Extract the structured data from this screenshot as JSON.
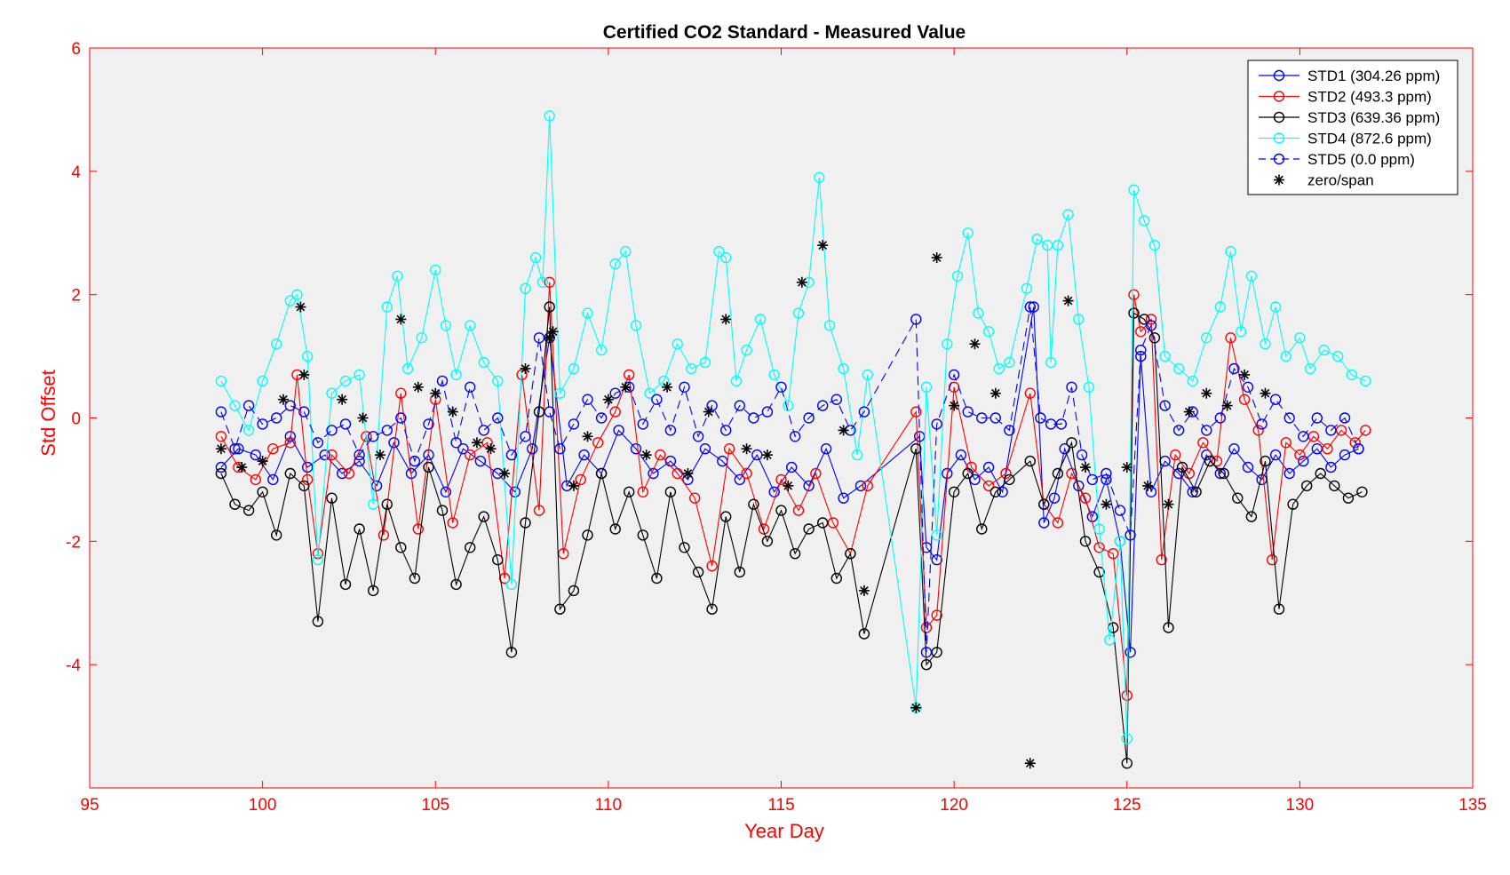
{
  "chart_data": {
    "type": "line",
    "title": "Certified CO2 Standard - Measured Value",
    "xlabel": "Year Day",
    "ylabel": "Std Offset",
    "xlim": [
      95,
      135
    ],
    "ylim": [
      -6,
      6
    ],
    "xticks": [
      95,
      100,
      105,
      110,
      115,
      120,
      125,
      130,
      135
    ],
    "yticks": [
      -4,
      -2,
      0,
      2,
      4,
      6
    ],
    "xtick_labels": [
      "95",
      "100",
      "105",
      "110",
      "115",
      "120",
      "125",
      "130",
      "135"
    ],
    "ytick_labels": [
      "-4",
      "-2",
      "0",
      "2",
      "4",
      "6"
    ],
    "axis_color": "#ff0000",
    "plot_background": "#f0f0f0",
    "legend_position": "top-right",
    "series": [
      {
        "name": "STD1 (304.26 ppm)",
        "color": "#0000ff",
        "marker": "circle",
        "line": "solid",
        "x": [
          98.8,
          99.3,
          99.8,
          100.3,
          100.8,
          101.3,
          101.8,
          102.3,
          102.8,
          103.3,
          103.8,
          104.3,
          104.8,
          105.3,
          105.8,
          106.3,
          106.8,
          107.3,
          107.8,
          108.3,
          108.8,
          109.3,
          109.8,
          110.3,
          110.8,
          111.3,
          111.8,
          112.3,
          112.8,
          113.3,
          113.8,
          114.3,
          114.8,
          115.3,
          115.8,
          116.3,
          116.8,
          117.3,
          119.0,
          119.2,
          119.5,
          119.8,
          120.2,
          120.6,
          121.0,
          121.4,
          122.3,
          122.6,
          122.9,
          123.2,
          123.6,
          124.0,
          124.4,
          124.8,
          125.1,
          125.4,
          125.7,
          126.1,
          126.5,
          126.9,
          127.3,
          127.7,
          128.1,
          128.5,
          128.9,
          129.3,
          129.7,
          130.1,
          130.5,
          130.9,
          131.3,
          131.7
        ],
        "y": [
          -0.8,
          -0.5,
          -0.6,
          -1.0,
          -0.3,
          -0.8,
          -0.6,
          -0.9,
          -0.7,
          -1.1,
          -0.4,
          -0.9,
          -0.6,
          -1.2,
          -0.5,
          -0.7,
          -0.9,
          -1.2,
          -0.5,
          1.3,
          -1.1,
          -0.6,
          -0.9,
          -0.2,
          -0.5,
          -0.9,
          -0.7,
          -1.0,
          -0.5,
          -0.7,
          -1.0,
          -0.6,
          -1.2,
          -0.8,
          -1.1,
          -0.5,
          -1.3,
          -1.1,
          -0.3,
          -2.1,
          -2.3,
          -0.9,
          -0.6,
          -1.0,
          -0.8,
          -1.2,
          1.8,
          -1.7,
          -1.3,
          -0.5,
          -1.1,
          -1.6,
          -1.0,
          -2.0,
          -3.8,
          1.0,
          -1.2,
          -0.7,
          -0.9,
          -1.2,
          -0.6,
          -0.9,
          -0.5,
          -0.8,
          -1.0,
          -0.6,
          -0.9,
          -0.7,
          -0.5,
          -0.8,
          -0.6,
          -0.5
        ]
      },
      {
        "name": "STD2 (493.3 ppm)",
        "color": "#ff0000",
        "marker": "circle",
        "line": "solid",
        "x": [
          98.8,
          99.3,
          99.8,
          100.3,
          100.8,
          101.0,
          101.3,
          101.6,
          102.0,
          102.5,
          103.0,
          103.5,
          104.0,
          104.5,
          105.0,
          105.5,
          106.0,
          106.5,
          107.0,
          107.5,
          108.0,
          108.3,
          108.7,
          109.2,
          109.7,
          110.2,
          110.6,
          111.0,
          111.5,
          112.0,
          112.5,
          113.0,
          113.5,
          114.0,
          114.5,
          115.0,
          115.5,
          116.0,
          116.5,
          117.0,
          117.5,
          118.9,
          119.2,
          119.5,
          120.0,
          120.5,
          121.0,
          121.5,
          122.2,
          122.6,
          123.0,
          123.4,
          123.8,
          124.2,
          124.6,
          125.0,
          125.2,
          125.4,
          125.7,
          126.0,
          126.4,
          126.8,
          127.2,
          127.6,
          128.0,
          128.4,
          128.8,
          129.2,
          129.6,
          130.0,
          130.4,
          130.8,
          131.2,
          131.6,
          131.9
        ],
        "y": [
          -0.3,
          -0.8,
          -1.0,
          -0.5,
          -0.4,
          0.7,
          -1.0,
          -2.2,
          -0.6,
          -0.9,
          -0.3,
          -1.9,
          0.4,
          -1.8,
          0.3,
          -1.7,
          -0.6,
          -0.4,
          -2.6,
          0.7,
          -1.5,
          2.2,
          -2.2,
          -1.0,
          -0.4,
          0.1,
          0.7,
          -1.2,
          -0.6,
          -0.9,
          -1.3,
          -2.4,
          -0.5,
          -0.9,
          -1.8,
          -1.0,
          -1.5,
          -0.9,
          -1.7,
          -2.2,
          -1.1,
          0.1,
          -3.4,
          -3.2,
          0.5,
          -0.8,
          -1.1,
          -0.9,
          0.4,
          -1.4,
          -1.7,
          -0.9,
          -1.3,
          -2.1,
          -2.2,
          -4.5,
          2.0,
          1.4,
          1.6,
          -2.3,
          -0.6,
          -0.9,
          -0.4,
          -0.7,
          1.3,
          0.3,
          -0.2,
          -2.3,
          -0.4,
          -0.6,
          -0.3,
          -0.5,
          -0.2,
          -0.4,
          -0.2
        ]
      },
      {
        "name": "STD3 (639.36 ppm)",
        "color": "#000000",
        "marker": "circle",
        "line": "solid",
        "x": [
          98.8,
          99.2,
          99.6,
          100.0,
          100.4,
          100.8,
          101.2,
          101.6,
          102.0,
          102.4,
          102.8,
          103.2,
          103.6,
          104.0,
          104.4,
          104.8,
          105.2,
          105.6,
          106.0,
          106.4,
          106.8,
          107.2,
          107.6,
          108.0,
          108.3,
          108.6,
          109.0,
          109.4,
          109.8,
          110.2,
          110.6,
          111.0,
          111.4,
          111.8,
          112.2,
          112.6,
          113.0,
          113.4,
          113.8,
          114.2,
          114.6,
          115.0,
          115.4,
          115.8,
          116.2,
          116.6,
          117.0,
          117.4,
          118.9,
          119.2,
          119.5,
          120.0,
          120.4,
          120.8,
          121.2,
          121.6,
          122.2,
          122.6,
          123.0,
          123.4,
          123.8,
          124.2,
          124.6,
          125.0,
          125.2,
          125.5,
          125.8,
          126.2,
          126.6,
          127.0,
          127.4,
          127.8,
          128.2,
          128.6,
          129.0,
          129.4,
          129.8,
          130.2,
          130.6,
          131.0,
          131.4,
          131.8
        ],
        "y": [
          -0.9,
          -1.4,
          -1.5,
          -1.2,
          -1.9,
          -0.9,
          -1.1,
          -3.3,
          -1.3,
          -2.7,
          -1.8,
          -2.8,
          -1.4,
          -2.1,
          -2.6,
          -0.8,
          -1.5,
          -2.7,
          -2.1,
          -1.6,
          -2.3,
          -3.8,
          -1.7,
          0.1,
          1.8,
          -3.1,
          -2.8,
          -1.9,
          -0.9,
          -1.8,
          -1.2,
          -1.9,
          -2.6,
          -1.2,
          -2.1,
          -2.5,
          -3.1,
          -1.6,
          -2.5,
          -1.4,
          -2.0,
          -1.5,
          -2.2,
          -1.8,
          -1.7,
          -2.6,
          -2.2,
          -3.5,
          -0.5,
          -4.0,
          -3.8,
          -1.2,
          -0.9,
          -1.8,
          -1.2,
          -1.0,
          -0.7,
          -1.4,
          -0.9,
          -0.4,
          -2.0,
          -2.5,
          -3.4,
          -5.6,
          1.7,
          1.6,
          1.3,
          -3.4,
          -0.8,
          -1.2,
          -0.7,
          -0.9,
          -1.3,
          -1.6,
          -0.7,
          -3.1,
          -1.4,
          -1.1,
          -0.9,
          -1.1,
          -1.3,
          -1.2
        ]
      },
      {
        "name": "STD4 (872.6 ppm)",
        "color": "#00ffff",
        "marker": "circle",
        "line": "solid",
        "x": [
          98.8,
          99.2,
          99.6,
          100.0,
          100.4,
          100.8,
          101.0,
          101.3,
          101.6,
          102.0,
          102.4,
          102.8,
          103.2,
          103.6,
          103.9,
          104.2,
          104.6,
          105.0,
          105.3,
          105.6,
          106.0,
          106.4,
          106.8,
          107.2,
          107.6,
          107.9,
          108.1,
          108.3,
          108.6,
          109.0,
          109.4,
          109.8,
          110.2,
          110.5,
          110.8,
          111.2,
          111.6,
          112.0,
          112.4,
          112.8,
          113.2,
          113.4,
          113.7,
          114.0,
          114.4,
          114.8,
          115.2,
          115.5,
          115.8,
          116.1,
          116.4,
          116.8,
          117.2,
          117.5,
          118.9,
          119.2,
          119.5,
          119.8,
          120.1,
          120.4,
          120.7,
          121.0,
          121.3,
          121.6,
          122.1,
          122.4,
          122.7,
          122.8,
          123.0,
          123.3,
          123.6,
          123.9,
          124.2,
          124.5,
          124.8,
          125.0,
          125.2,
          125.5,
          125.8,
          126.1,
          126.5,
          126.9,
          127.3,
          127.7,
          128.0,
          128.3,
          128.6,
          129.0,
          129.3,
          129.6,
          130.0,
          130.3,
          130.7,
          131.1,
          131.5,
          131.9
        ],
        "y": [
          0.6,
          0.2,
          -0.2,
          0.6,
          1.2,
          1.9,
          2.0,
          1.0,
          -2.3,
          0.4,
          0.6,
          0.7,
          -1.4,
          1.8,
          2.3,
          0.8,
          1.3,
          2.4,
          1.5,
          0.7,
          1.5,
          0.9,
          0.6,
          -2.7,
          2.1,
          2.6,
          2.2,
          4.9,
          0.4,
          0.8,
          1.7,
          1.1,
          2.5,
          2.7,
          1.5,
          0.4,
          0.6,
          1.2,
          0.8,
          0.9,
          2.7,
          2.6,
          0.6,
          1.1,
          1.6,
          0.7,
          0.2,
          1.7,
          2.2,
          3.9,
          1.5,
          0.8,
          -0.6,
          0.7,
          -4.7,
          0.5,
          -1.9,
          1.2,
          2.3,
          3.0,
          1.7,
          1.4,
          0.8,
          0.9,
          2.1,
          2.9,
          2.8,
          0.9,
          2.8,
          3.3,
          1.6,
          0.5,
          -1.8,
          -3.6,
          -2.0,
          -5.2,
          3.7,
          3.2,
          2.8,
          1.0,
          0.8,
          0.6,
          1.3,
          1.8,
          2.7,
          1.4,
          2.3,
          1.2,
          1.8,
          1.0,
          1.3,
          0.8,
          1.1,
          1.0,
          0.7,
          0.6
        ]
      },
      {
        "name": "STD5 (0.0 ppm)",
        "color": "#0000ff",
        "marker": "circle",
        "line": "dashed",
        "x": [
          98.8,
          99.2,
          99.6,
          100.0,
          100.4,
          100.8,
          101.2,
          101.6,
          102.0,
          102.4,
          102.8,
          103.2,
          103.6,
          104.0,
          104.4,
          104.8,
          105.2,
          105.6,
          106.0,
          106.4,
          106.8,
          107.2,
          107.6,
          108.0,
          108.3,
          108.6,
          109.0,
          109.4,
          109.8,
          110.2,
          110.6,
          111.0,
          111.4,
          111.8,
          112.2,
          112.6,
          113.0,
          113.4,
          113.8,
          114.2,
          114.6,
          115.0,
          115.4,
          115.8,
          116.2,
          116.6,
          117.0,
          117.4,
          118.9,
          119.2,
          119.5,
          120.0,
          120.4,
          120.8,
          121.2,
          121.6,
          122.2,
          122.5,
          122.8,
          123.1,
          123.4,
          123.7,
          124.0,
          124.4,
          124.8,
          125.1,
          125.4,
          125.7,
          126.1,
          126.5,
          126.9,
          127.3,
          127.7,
          128.1,
          128.5,
          128.9,
          129.3,
          129.7,
          130.1,
          130.5,
          130.9,
          131.3,
          131.7
        ],
        "y": [
          0.1,
          -0.5,
          0.2,
          -0.1,
          0.0,
          0.2,
          0.1,
          -0.4,
          -0.2,
          -0.1,
          -0.6,
          -0.3,
          -0.2,
          0.0,
          -0.7,
          -0.1,
          0.6,
          -0.4,
          0.5,
          -0.2,
          0.0,
          -0.6,
          -0.3,
          1.3,
          0.1,
          -0.5,
          -0.1,
          0.3,
          0.0,
          0.4,
          0.5,
          -0.1,
          0.3,
          -0.2,
          0.5,
          -0.3,
          0.2,
          -0.2,
          0.2,
          0.0,
          0.1,
          0.5,
          -0.3,
          0.0,
          0.2,
          0.3,
          -0.2,
          0.1,
          1.6,
          -3.8,
          -0.1,
          0.7,
          0.1,
          0.0,
          0.0,
          -0.2,
          1.8,
          0.0,
          -0.1,
          -0.1,
          0.5,
          -0.6,
          -1.0,
          -0.9,
          -1.5,
          -1.9,
          1.1,
          1.5,
          0.2,
          -0.2,
          0.1,
          -0.2,
          0.0,
          0.8,
          0.5,
          -0.1,
          0.3,
          0.0,
          -0.3,
          0.0,
          -0.2,
          0.0,
          -0.5
        ]
      },
      {
        "name": "zero/span",
        "color": "#000000",
        "marker": "asterisk",
        "line": "none",
        "x": [
          98.8,
          99.4,
          100.0,
          100.6,
          101.1,
          101.2,
          102.3,
          102.9,
          103.4,
          104.0,
          104.5,
          105.0,
          105.5,
          106.2,
          106.6,
          107.0,
          107.6,
          108.3,
          108.4,
          109.0,
          109.4,
          110.0,
          110.5,
          111.1,
          111.7,
          112.3,
          112.9,
          113.4,
          114.0,
          114.6,
          115.2,
          115.6,
          116.2,
          116.8,
          117.4,
          118.9,
          119.5,
          120.0,
          120.6,
          121.2,
          122.2,
          123.3,
          123.8,
          124.4,
          125.0,
          125.6,
          126.2,
          126.8,
          127.3,
          127.9,
          128.4,
          129.0
        ],
        "y": [
          -0.5,
          -0.8,
          -0.7,
          0.3,
          1.8,
          0.7,
          0.3,
          0.0,
          -0.6,
          1.6,
          0.5,
          0.4,
          0.1,
          -0.4,
          -0.5,
          -0.9,
          0.8,
          1.3,
          1.4,
          -1.1,
          -0.3,
          0.3,
          0.5,
          -0.6,
          0.5,
          -0.9,
          0.1,
          1.6,
          -0.5,
          -0.6,
          -1.1,
          2.2,
          2.8,
          -0.2,
          -2.8,
          -4.7,
          2.6,
          0.2,
          1.2,
          0.4,
          -5.6,
          1.9,
          -0.8,
          -1.4,
          -0.8,
          -1.1,
          -1.4,
          0.1,
          0.4,
          0.2,
          0.7,
          0.4
        ]
      }
    ]
  }
}
